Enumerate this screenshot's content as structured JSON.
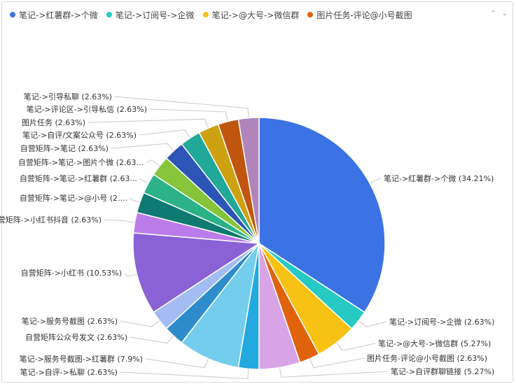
{
  "legend": {
    "items": [
      {
        "label": "笔记->红薯群->个微",
        "color": "#3b73e4"
      },
      {
        "label": "笔记->订阅号->企微",
        "color": "#26c9c4"
      },
      {
        "label": "笔记->@大号->微信群",
        "color": "#f7c214"
      },
      {
        "label": "图片任务-评论@小号截图",
        "color": "#e0630c"
      }
    ],
    "prev_icon": "chevron-up-icon",
    "next_icon": "chevron-down-icon"
  },
  "chart_data": {
    "type": "pie",
    "slices": [
      {
        "name": "笔记->红薯群->个微",
        "value": 34.21,
        "color": "#3b73e4",
        "label": "笔记->红薯群->个微 (34.21%)"
      },
      {
        "name": "笔记->订阅号->企微",
        "value": 2.63,
        "color": "#26c9c4",
        "label": "笔记->订阅号->企微 (2.63%)"
      },
      {
        "name": "笔记->@大号->微信群",
        "value": 5.27,
        "color": "#f7c214",
        "label": "笔记->@大号->微信群 (5.27%)"
      },
      {
        "name": "图片任务-评论@小号截图",
        "value": 2.63,
        "color": "#e0630c",
        "label": "图片任务-评论@小号截图 (2.63%)"
      },
      {
        "name": "笔记->自评群聊链接",
        "value": 5.27,
        "color": "#d8a4e6",
        "label": "笔记->自评群聊链接 (5.27%)"
      },
      {
        "name": "笔记->自评->私聊",
        "value": 2.63,
        "color": "#23a8e0",
        "label": "笔记->自评->私聊 (2.63%)"
      },
      {
        "name": "笔记->服务号截图->红薯群",
        "value": 7.9,
        "color": "#74cdec",
        "label": "笔记->服务号截图->红薯群 (7.9%)"
      },
      {
        "name": "自营矩阵公众号发文",
        "value": 2.63,
        "color": "#2f8ccc",
        "label": "自营矩阵公众号发文 (2.63%)"
      },
      {
        "name": "笔记->服务号截图",
        "value": 2.63,
        "color": "#a3bdf4",
        "label": "笔记->服务号截图 (2.63%)"
      },
      {
        "name": "自营矩阵->小红书",
        "value": 10.53,
        "color": "#8a62d6",
        "label": "自营矩阵->小红书 (10.53%)"
      },
      {
        "name": "自营矩阵->小红书抖音",
        "value": 2.63,
        "color": "#bb7ce9",
        "label": "自营矩阵->小红书抖音 (2.63%)"
      },
      {
        "name": "自营矩阵->笔记->@小号",
        "value": 2.63,
        "color": "#0f7a72",
        "label": "自营矩阵->笔记->@小号 (2...."
      },
      {
        "name": "自营矩阵->笔记->红薯群",
        "value": 2.63,
        "color": "#2cb287",
        "label": "自营矩阵->笔记->红薯群 (2.63..."
      },
      {
        "name": "自营矩阵->笔记->图片个微",
        "value": 2.63,
        "color": "#86c43a",
        "label": "自营矩阵->笔记->图片个微 (2.63..."
      },
      {
        "name": "自营矩阵->笔记",
        "value": 2.63,
        "color": "#2d55b8",
        "label": "自营矩阵->笔记 (2.63%)"
      },
      {
        "name": "笔记->自评/文案公众号",
        "value": 2.63,
        "color": "#22a898",
        "label": "笔记->自评/文案公众号 (2.63%)"
      },
      {
        "name": "图片任务",
        "value": 2.63,
        "color": "#cea112",
        "label": "图片任务 (2.63%)"
      },
      {
        "name": "笔记->评论区->引导私信",
        "value": 2.63,
        "color": "#c0550f",
        "label": "笔记->评论区->引导私信 (2.63%)"
      },
      {
        "name": "笔记->引导私聊",
        "value": 2.63,
        "color": "#b086ba",
        "label": "笔记->引导私聊 (2.63%)"
      }
    ]
  }
}
